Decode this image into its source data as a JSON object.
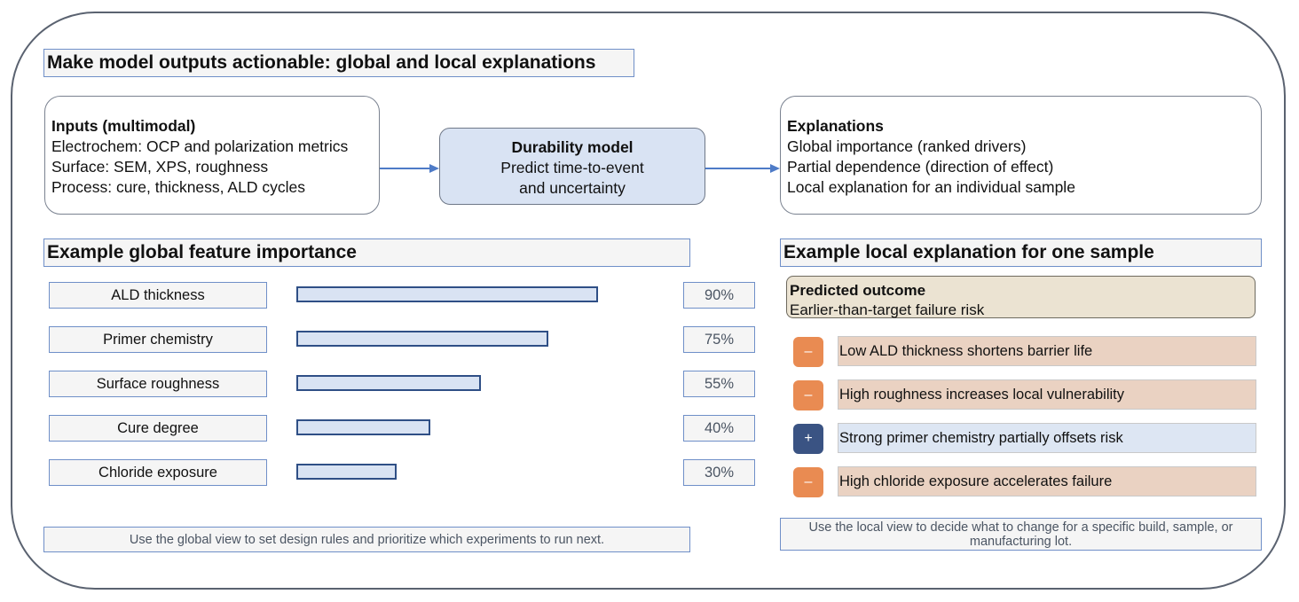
{
  "title": "Make model outputs actionable: global and local explanations",
  "inputs": {
    "heading": "Inputs (multimodal)",
    "lines": [
      "Electrochem: OCP and polarization metrics",
      "Surface: SEM, XPS, roughness",
      "Process: cure, thickness, ALD cycles"
    ]
  },
  "model": {
    "heading": "Durability model",
    "lines": [
      "Predict time-to-event",
      "and uncertainty"
    ]
  },
  "explanations": {
    "heading": "Explanations",
    "lines": [
      "Global importance (ranked drivers)",
      "Partial dependence (direction of effect)",
      "Local explanation for an individual sample"
    ]
  },
  "global": {
    "heading": "Example global feature importance",
    "features": [
      {
        "label": "ALD thickness",
        "percent": "90%",
        "value": 90
      },
      {
        "label": "Primer chemistry",
        "percent": "75%",
        "value": 75
      },
      {
        "label": "Surface roughness",
        "percent": "55%",
        "value": 55
      },
      {
        "label": "Cure degree",
        "percent": "40%",
        "value": 40
      },
      {
        "label": "Chloride exposure",
        "percent": "30%",
        "value": 30
      }
    ],
    "note": "Use the global view to set design rules and prioritize which experiments to run next."
  },
  "local": {
    "heading": "Example local explanation for one sample",
    "outcome_heading": "Predicted outcome",
    "outcome_text": "Earlier-than-target failure risk",
    "drivers": [
      {
        "sign": "–",
        "effect": "negative",
        "text": "Low ALD thickness shortens barrier life"
      },
      {
        "sign": "–",
        "effect": "negative",
        "text": "High roughness increases local vulnerability"
      },
      {
        "sign": "+",
        "effect": "positive",
        "text": "Strong primer chemistry partially offsets risk"
      },
      {
        "sign": "–",
        "effect": "negative",
        "text": "High chloride exposure accelerates failure"
      }
    ],
    "note": "Use the local view to decide what to change for a specific build, sample, or manufacturing lot."
  },
  "colors": {
    "accent_blue": "#4e7bc7",
    "bar_fill": "#d9e3f3",
    "bar_border": "#2f4f86",
    "negative": "#e98b52",
    "positive": "#3a5383"
  }
}
